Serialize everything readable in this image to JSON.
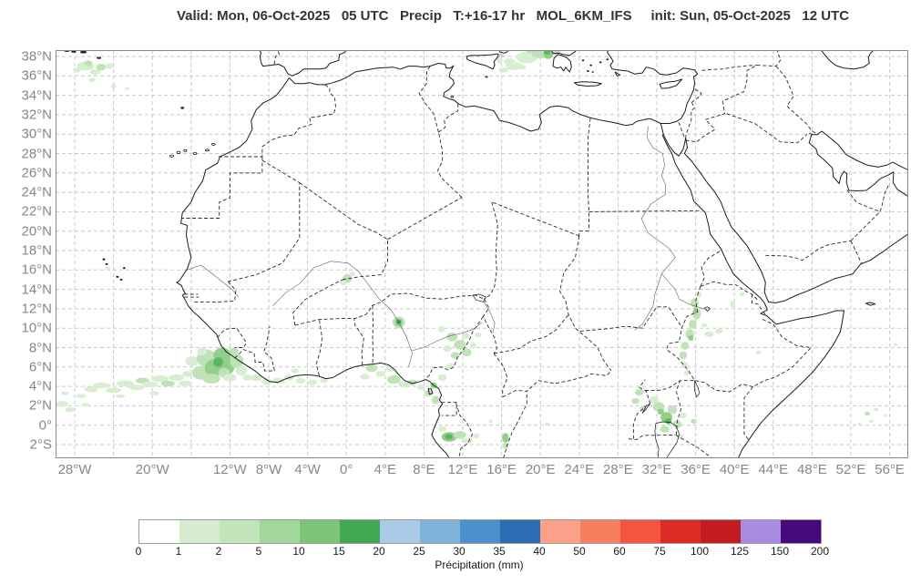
{
  "header": {
    "title": "Valid: Mon, 06-Oct-2025   05 UTC   Precip   T:+16-17 hr   MOL_6KM_IFS     init: Sun, 05-Oct-2025   12 UTC",
    "valid": "Mon, 06-Oct-2025 05 UTC",
    "parameter": "Precip",
    "step": "T:+16-17 hr",
    "model": "MOL_6KM_IFS",
    "init": "Sun, 05-Oct-2025 12 UTC"
  },
  "map": {
    "lat_ticks": [
      {
        "value": 38,
        "label": "38°N"
      },
      {
        "value": 36,
        "label": "36°N"
      },
      {
        "value": 34,
        "label": "34°N"
      },
      {
        "value": 32,
        "label": "32°N"
      },
      {
        "value": 30,
        "label": "30°N"
      },
      {
        "value": 28,
        "label": "28°N"
      },
      {
        "value": 26,
        "label": "26°N"
      },
      {
        "value": 24,
        "label": "24°N"
      },
      {
        "value": 22,
        "label": "22°N"
      },
      {
        "value": 20,
        "label": "20°N"
      },
      {
        "value": 18,
        "label": "18°N"
      },
      {
        "value": 16,
        "label": "16°N"
      },
      {
        "value": 14,
        "label": "14°N"
      },
      {
        "value": 12,
        "label": "12°N"
      },
      {
        "value": 10,
        "label": "10°N"
      },
      {
        "value": 8,
        "label": "8°N"
      },
      {
        "value": 6,
        "label": "6°N"
      },
      {
        "value": 4,
        "label": "4°N"
      },
      {
        "value": 2,
        "label": "2°N"
      },
      {
        "value": 0,
        "label": "0°"
      },
      {
        "value": -2,
        "label": "2°S"
      }
    ],
    "lon_gridlines": [
      -28,
      -24,
      -20,
      -16,
      -12,
      -8,
      -4,
      0,
      4,
      8,
      12,
      16,
      20,
      24,
      28,
      32,
      36,
      40,
      44,
      48,
      52,
      56
    ],
    "lon_ticks": [
      {
        "value": -28,
        "label": "28°W"
      },
      {
        "value": -20,
        "label": "20°W"
      },
      {
        "value": -12,
        "label": "12°W"
      },
      {
        "value": -8,
        "label": "8°W"
      },
      {
        "value": -4,
        "label": "4°W"
      },
      {
        "value": 0,
        "label": "0°"
      },
      {
        "value": 4,
        "label": "4°E"
      },
      {
        "value": 8,
        "label": "8°E"
      },
      {
        "value": 12,
        "label": "12°E"
      },
      {
        "value": 16,
        "label": "16°E"
      },
      {
        "value": 20,
        "label": "20°E"
      },
      {
        "value": 24,
        "label": "24°E"
      },
      {
        "value": 28,
        "label": "28°E"
      },
      {
        "value": 32,
        "label": "32°E"
      },
      {
        "value": 36,
        "label": "36°E"
      },
      {
        "value": 40,
        "label": "40°E"
      },
      {
        "value": 44,
        "label": "44°E"
      },
      {
        "value": 48,
        "label": "48°E"
      },
      {
        "value": 52,
        "label": "52°E"
      },
      {
        "value": 56,
        "label": "56°E"
      }
    ],
    "grid_color": "#c9c9c9",
    "coast_color": "#1c1c1c",
    "border_color": "#2a2a2a",
    "river_color": "#606060",
    "frame_color": "#8a8a8a",
    "precip_palette": [
      "#d8eed3",
      "#bfe3b7",
      "#93ce8b",
      "#5bb562",
      "#2f9e47"
    ]
  },
  "colorbar": {
    "label": "Précipitation (mm)",
    "ticks": [
      "0",
      "1",
      "2",
      "5",
      "10",
      "15",
      "20",
      "25",
      "30",
      "35",
      "40",
      "50",
      "60",
      "75",
      "100",
      "125",
      "150",
      "200"
    ],
    "colors": [
      "#ffffff",
      "#d5ecd0",
      "#c3e5bc",
      "#a3d69b",
      "#7cc577",
      "#42a854",
      "#a9cbe7",
      "#7fb2da",
      "#4a90ca",
      "#2b6cb3",
      "#fba089",
      "#f97d5f",
      "#f45540",
      "#dc2b25",
      "#c31c21",
      "#a88ce2",
      "#48097e"
    ]
  }
}
